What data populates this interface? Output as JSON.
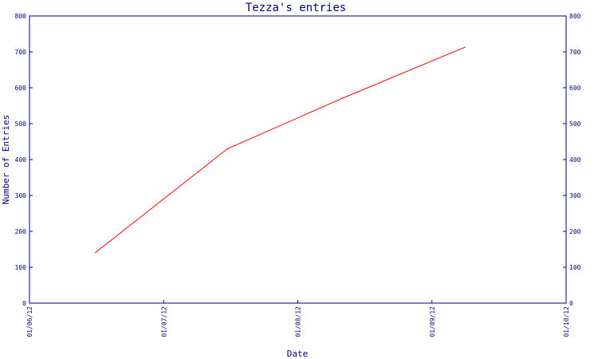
{
  "chart_data": {
    "type": "line",
    "title": "Tezza's entries",
    "xlabel": "Date",
    "ylabel": "Number of Entries",
    "x_ticks": [
      "01/06/12",
      "01/07/12",
      "01/08/12",
      "01/09/12",
      "01/10/12"
    ],
    "y_ticks": [
      "0",
      "100",
      "200",
      "300",
      "400",
      "500",
      "600",
      "700",
      "800"
    ],
    "y_ticks_right": [
      "0",
      "100",
      "200",
      "300",
      "400",
      "500",
      "600",
      "700",
      "800"
    ],
    "xlim": [
      "2012-06-01",
      "2012-10-01"
    ],
    "ylim": [
      0,
      800
    ],
    "grid": false,
    "series": [
      {
        "x": [
          "2012-06-16",
          "2012-07-16",
          "2012-08-11",
          "2012-09-08"
        ],
        "values": [
          141,
          430,
          570,
          713
        ]
      }
    ],
    "colors": {
      "axis": "#000080",
      "line": "#ff0000"
    }
  }
}
